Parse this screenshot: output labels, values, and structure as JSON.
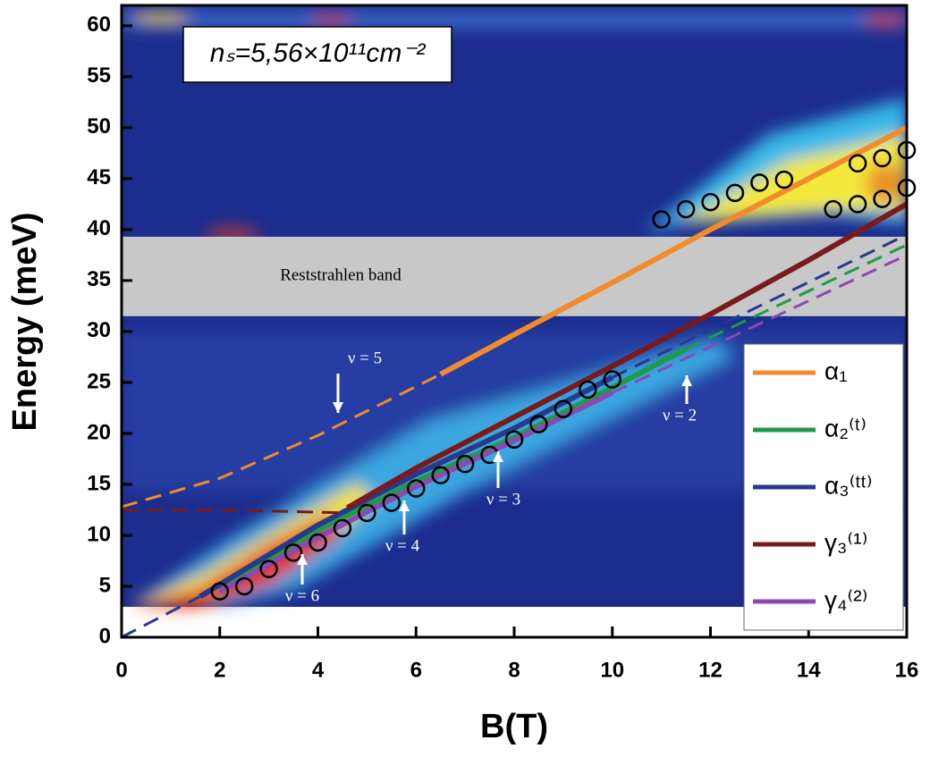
{
  "chart_data": {
    "type": "scatter",
    "xlabel": "B(T)",
    "ylabel": "Energy (meV)",
    "xlim": [
      0,
      16
    ],
    "ylim": [
      0,
      62
    ],
    "xticks": [
      0,
      2,
      4,
      6,
      8,
      10,
      12,
      14,
      16
    ],
    "yticks": [
      0,
      5,
      10,
      15,
      20,
      25,
      30,
      35,
      40,
      45,
      50,
      55,
      60
    ],
    "band": {
      "label": "Reststrahlen band",
      "range": [
        31.5,
        39.3
      ],
      "color": "#c8c8c8"
    },
    "annotation": "nₛ=5,56×10¹¹cm⁻²",
    "filling_factors": [
      "ν = 5",
      "ν = 2",
      "ν = 3",
      "ν = 4",
      "ν = 6"
    ],
    "marker_color": "#000000",
    "x": [
      2,
      2.5,
      3,
      3.5,
      4,
      4.5,
      5,
      5.5,
      6,
      6.5,
      7,
      7.5,
      8,
      8.5,
      9,
      9.5,
      10,
      11,
      11.5,
      12,
      12.5,
      13,
      13.5,
      14.5,
      15,
      15.5,
      16,
      15,
      15.5,
      16
    ],
    "values": [
      4.5,
      5,
      6.7,
      8.3,
      9.3,
      10.7,
      12.2,
      13.2,
      14.6,
      15.9,
      17,
      17.9,
      19.4,
      20.9,
      22.4,
      24.3,
      25.3,
      41,
      42,
      42.7,
      43.6,
      44.6,
      44.9,
      42,
      42.5,
      43,
      44.1,
      46.5,
      47,
      47.8
    ],
    "legend": "lower right",
    "series": [
      {
        "name": "α₁",
        "color": "#f28a2e",
        "x": [
          6.5,
          8,
          10,
          12,
          14,
          16
        ],
        "values": [
          25.8,
          29.7,
          34.8,
          40,
          45,
          50
        ]
      },
      {
        "name": "α₂⁽ᵗ⁾",
        "color": "#1f9a4a",
        "x": [
          2,
          4,
          6,
          8,
          10,
          11.5
        ],
        "values": [
          5,
          10.5,
          15.3,
          19.6,
          24.5,
          28.3
        ]
      },
      {
        "name": "α₃⁽ᵗᵗ⁾",
        "color": "#283a8c",
        "x": [
          1.6,
          4,
          6,
          8,
          10
        ],
        "values": [
          4,
          11,
          16,
          20.5,
          25.5
        ]
      },
      {
        "name": "γ₃⁽¹⁾",
        "color": "#7a1a1a",
        "x": [
          4.6,
          6,
          8,
          10,
          12,
          14,
          16
        ],
        "values": [
          12.7,
          16.6,
          21.6,
          26.6,
          31.7,
          37,
          42.5
        ]
      },
      {
        "name": "γ₄⁽²⁾",
        "color": "#8a4ab0",
        "x": [
          2,
          4,
          6,
          8,
          10
        ],
        "values": [
          4.5,
          9.8,
          14.8,
          19.3,
          24
        ]
      },
      {
        "color": "#f28a2e",
        "dashed": true,
        "x": [
          0,
          2,
          4,
          6.5
        ],
        "values": [
          12.8,
          15.6,
          19.8,
          25.8
        ]
      },
      {
        "color": "#1f9a4a",
        "dashed": true,
        "x": [
          11.5,
          16
        ],
        "values": [
          28.3,
          38.5
        ]
      },
      {
        "color": "#283a8c",
        "dashed": true,
        "x": [
          0,
          1.6
        ],
        "values": [
          0,
          4
        ]
      },
      {
        "color": "#283a8c",
        "dashed": true,
        "x": [
          10,
          16
        ],
        "values": [
          25.5,
          39.5
        ]
      },
      {
        "color": "#7a1a1a",
        "dashed": true,
        "x": [
          0,
          2,
          4.6
        ],
        "values": [
          12.5,
          12.5,
          12.2
        ]
      },
      {
        "color": "#8a4ab0",
        "dashed": true,
        "x": [
          10,
          16
        ],
        "values": [
          24,
          37.5
        ]
      }
    ]
  }
}
